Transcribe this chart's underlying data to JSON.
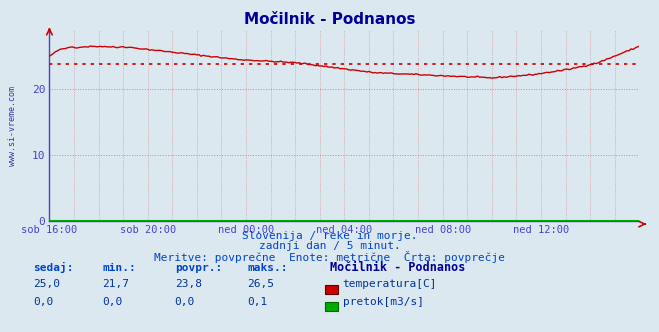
{
  "title": "Močilnik - Podnanos",
  "bg_color": "#dce8f0",
  "plot_bg_color": "#dce8f0",
  "border_color": "#4444cc",
  "grid_color": "#cc8888",
  "x_labels": [
    "sob 16:00",
    "sob 20:00",
    "ned 00:00",
    "ned 04:00",
    "ned 08:00",
    "ned 12:00"
  ],
  "x_ticks_norm": [
    0.0,
    0.1667,
    0.3333,
    0.5,
    0.6667,
    0.8333
  ],
  "y_ticks": [
    0,
    10,
    20
  ],
  "ylim": [
    0,
    29
  ],
  "avg_line_value": 23.8,
  "avg_line_color": "#cc0000",
  "temp_line_color": "#cc0000",
  "flow_line_color": "#00aa00",
  "watermark_text": "www.si-vreme.com",
  "footer_line1": "Slovenija / reke in morje.",
  "footer_line2": "zadnji dan / 5 minut.",
  "footer_line3": "Meritve: povprečne  Enote: metrične  Črta: povprečje",
  "table_headers": [
    "sedaj:",
    "min.:",
    "povpr.:",
    "maks.:"
  ],
  "station_name": "Močilnik - Podnanos",
  "row1_values": [
    "25,0",
    "21,7",
    "23,8",
    "26,5"
  ],
  "row2_values": [
    "0,0",
    "0,0",
    "0,0",
    "0,1"
  ],
  "legend1": "temperatura[C]",
  "legend2": "pretok[m3/s]",
  "title_color": "#000099",
  "footer_color": "#0044cc",
  "table_header_color": "#0044cc",
  "table_value_color": "#003399",
  "station_name_color": "#000099",
  "tick_color": "#4444cc"
}
